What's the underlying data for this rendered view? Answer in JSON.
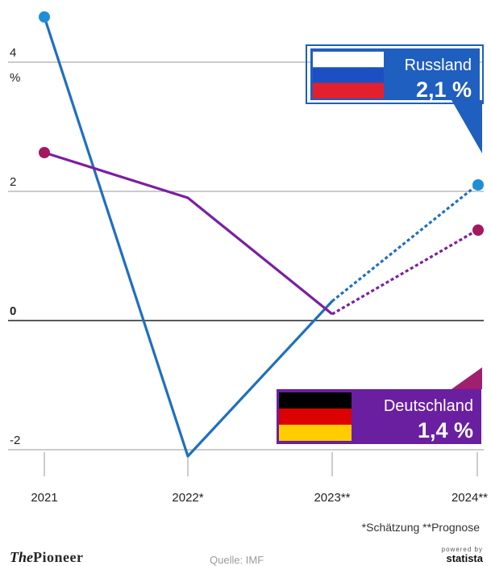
{
  "chart_data": {
    "type": "line",
    "categories": [
      "2021",
      "2022*",
      "2023**",
      "2024**"
    ],
    "ylim": [
      -2,
      4
    ],
    "y_ticks": [
      "4",
      "2",
      "0",
      "-2"
    ],
    "y_unit": "%",
    "grid": true,
    "series": [
      {
        "name": "Russland",
        "values": [
          4.7,
          -2.1,
          0.3,
          2.1
        ],
        "color": "#1f6fbf",
        "marker_color": "#1c8fd6",
        "forecast_from_index": 2
      },
      {
        "name": "Deutschland",
        "values": [
          2.6,
          1.9,
          0.1,
          1.4
        ],
        "color": "#7b1fa2",
        "marker_color": "#a3185e",
        "forecast_from_index": 2
      }
    ],
    "callouts": [
      {
        "series": "Russland",
        "label": "Russland",
        "value": "2,1 %",
        "bg": "#1f5fbf",
        "border": "#1f5fbf"
      },
      {
        "series": "Deutschland",
        "label": "Deutschland",
        "value": "1,4 %",
        "bg": "#6a1fa0",
        "border": "#a01f6e"
      }
    ]
  },
  "footnote": "*Schätzung **Prognose",
  "brand": {
    "a": "The",
    "b": "Pioneer"
  },
  "source": "Quelle: IMF",
  "statista": {
    "powered": "powered by",
    "name": "statista"
  }
}
